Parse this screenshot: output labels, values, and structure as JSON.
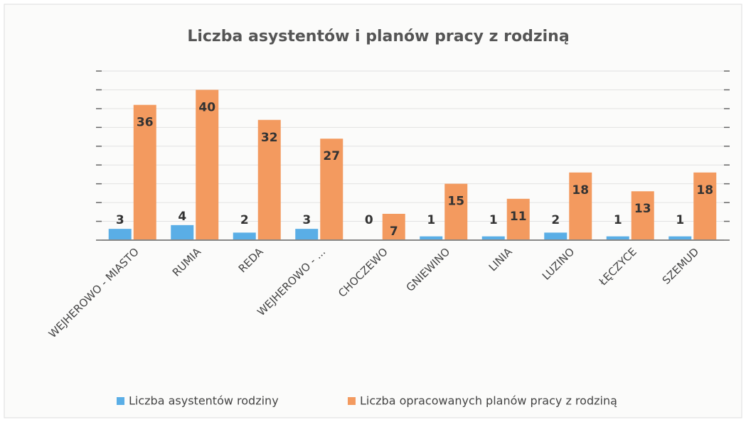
{
  "chart_data": {
    "type": "bar",
    "title": "Liczba asystentów i planów pracy z rodziną",
    "categories": [
      "WEJHEROWO - MIASTO",
      "RUMIA",
      "REDA",
      "WEJHEROWO - ...",
      "CHOCZEWO",
      "GNIEWINO",
      "LINIA",
      "LUZINO",
      "ŁĘCZYCE",
      "SZEMUD"
    ],
    "series": [
      {
        "name": "Liczba asystentów  rodziny",
        "color": "#5aaee6",
        "values": [
          3,
          4,
          2,
          3,
          0,
          1,
          1,
          2,
          1,
          1
        ]
      },
      {
        "name": "Liczba opracowanych planów pracy z rodziną",
        "color": "#f39a5f",
        "values": [
          36,
          40,
          32,
          27,
          7,
          15,
          11,
          18,
          13,
          18
        ]
      }
    ],
    "ylim": [
      0,
      45
    ],
    "yticks": [
      0,
      5,
      10,
      15,
      20,
      25,
      30,
      35,
      40,
      45
    ],
    "grid": true,
    "legend": "bottom"
  }
}
